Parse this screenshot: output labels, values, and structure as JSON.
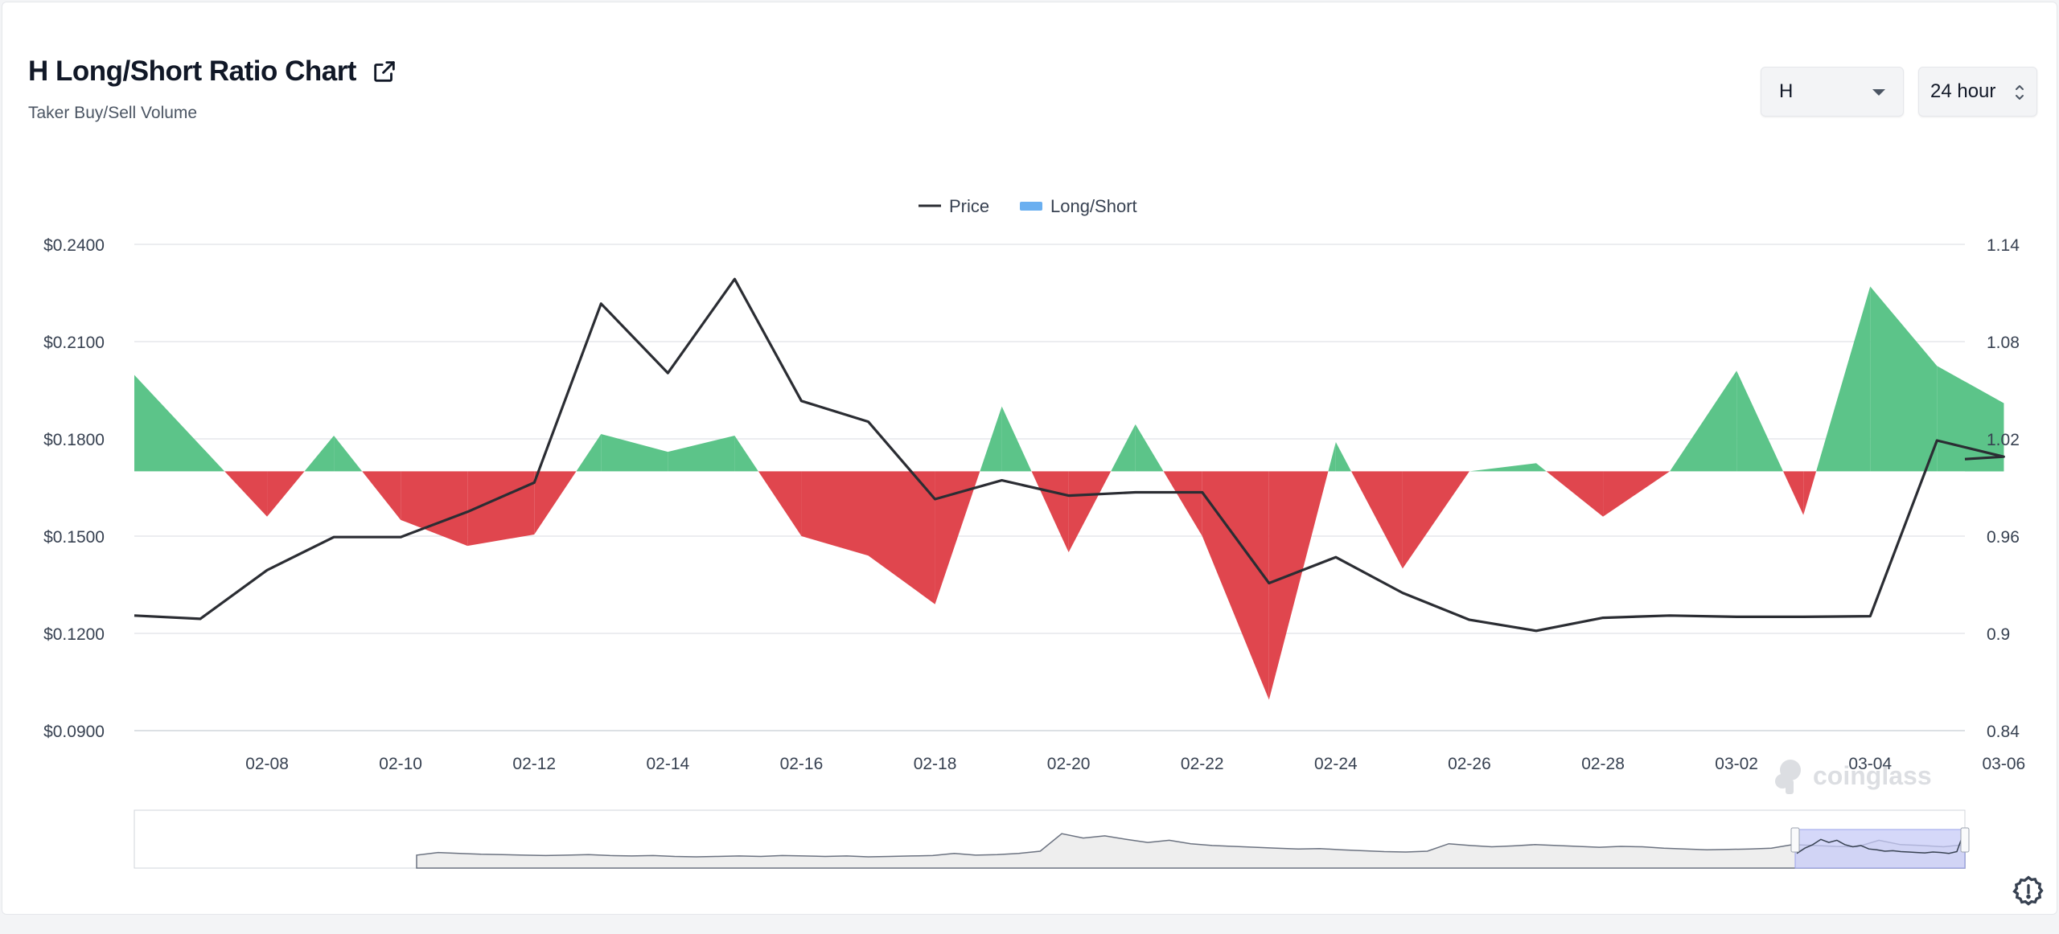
{
  "header": {
    "title": "H Long/Short Ratio Chart",
    "subtitle": "Taker Buy/Sell Volume",
    "external_link_icon": "external-link-icon"
  },
  "controls": {
    "symbol": "H",
    "period": "24 hour"
  },
  "legend": {
    "price": "Price",
    "long_short": "Long/Short"
  },
  "watermark": "coinglass",
  "colors": {
    "price_line": "#2b2d33",
    "long": "#5cc489",
    "short": "#e0464e",
    "legend_long_short": "#6aaff0",
    "zoom_window": "#c7cbf7",
    "axis_text": "#374151",
    "grid": "#e5e7eb"
  },
  "chart_data": {
    "type": "area",
    "x": [
      "02-07",
      "02-08",
      "02-09",
      "02-10",
      "02-11",
      "02-12",
      "02-13",
      "02-14",
      "02-15",
      "02-16",
      "02-17",
      "02-18",
      "02-19",
      "02-20",
      "02-21",
      "02-22",
      "02-23",
      "02-24",
      "02-25",
      "02-26",
      "02-27",
      "02-28",
      "03-01",
      "03-02",
      "03-03",
      "03-04",
      "03-05",
      "03-06"
    ],
    "x_tick_labels": [
      "02-08",
      "02-10",
      "02-12",
      "02-14",
      "02-16",
      "02-18",
      "02-20",
      "02-22",
      "02-24",
      "02-26",
      "02-28",
      "03-02",
      "03-04",
      "03-06"
    ],
    "y_left": {
      "ticks": [
        "$0.2400",
        "$0.2100",
        "$0.1800",
        "$0.1500",
        "$0.1200",
        "$0.0900"
      ],
      "range": [
        0.09,
        0.24
      ]
    },
    "y_right": {
      "ticks": [
        "1.14",
        "1.08",
        "1.02",
        "0.96",
        "0.9",
        "0.84"
      ],
      "range": [
        0.84,
        1.14
      ]
    },
    "baseline_ratio": 1.0,
    "series": [
      {
        "name": "Price",
        "axis": "left",
        "values": [
          0.1245,
          0.1395,
          0.1497,
          0.1497,
          0.1575,
          0.1665,
          0.2217,
          0.2003,
          0.2293,
          0.1917,
          0.1853,
          0.1614,
          0.1672,
          0.1625,
          0.1635,
          0.1635,
          0.1355,
          0.1435,
          0.1325,
          0.1242,
          0.1208,
          0.1248,
          0.1255,
          0.1251,
          0.1251,
          0.1253,
          0.1795,
          0.1745
        ]
      },
      {
        "name": "Long/Short",
        "axis": "right",
        "values": [
          1.016,
          0.972,
          1.022,
          0.97,
          0.954,
          0.961,
          1.023,
          1.012,
          1.022,
          0.96,
          0.948,
          0.918,
          1.04,
          0.95,
          1.029,
          0.96,
          0.859,
          1.018,
          0.94,
          1.0,
          1.005,
          0.972,
          1.0,
          1.062,
          0.973,
          1.114,
          1.065,
          1.042
        ]
      }
    ],
    "grid": true,
    "legend_position": "top-center"
  }
}
